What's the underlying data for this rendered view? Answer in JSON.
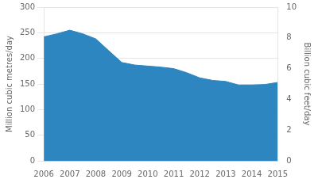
{
  "chart_data": {
    "type": "area",
    "x": [
      2006.0,
      2006.5,
      2007.0,
      2007.5,
      2008.0,
      2008.5,
      2009.0,
      2009.5,
      2010.0,
      2010.5,
      2011.0,
      2011.5,
      2012.0,
      2012.5,
      2013.0,
      2013.5,
      2014.0,
      2014.5,
      2015.0
    ],
    "values": [
      242,
      248,
      255,
      248,
      238,
      215,
      192,
      187,
      185,
      183,
      180,
      172,
      162,
      157,
      155,
      148,
      148,
      149,
      153
    ],
    "color": "#2e86c1",
    "xlim": [
      2006,
      2015
    ],
    "xticks": [
      2006,
      2007,
      2008,
      2009,
      2010,
      2011,
      2012,
      2013,
      2014,
      2015
    ],
    "ylim": [
      0,
      300
    ],
    "yticks": [
      0,
      50,
      100,
      150,
      200,
      250,
      300
    ],
    "y2lim": [
      0,
      10
    ],
    "y2ticks": [
      0,
      2,
      4,
      6,
      8,
      10
    ],
    "ylabel": "Million cubic metres/day",
    "y2label": "Billion cubic feet/day",
    "grid": true
  }
}
